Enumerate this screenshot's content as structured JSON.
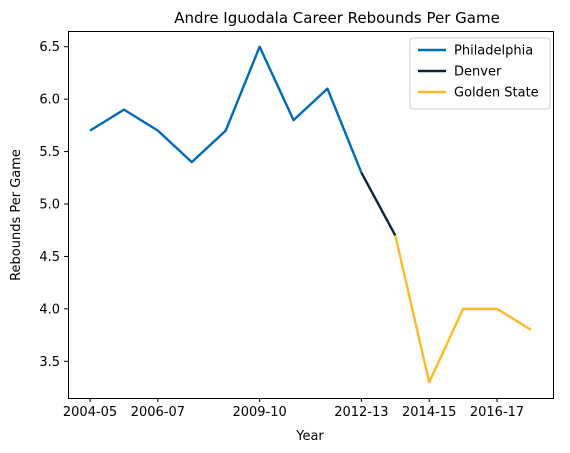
{
  "chart_data": {
    "type": "line",
    "title": "Andre Iguodala Career Rebounds Per Game",
    "xlabel": "Year",
    "ylabel": "Rebounds Per Game",
    "ylim": [
      3.15,
      6.65
    ],
    "yticks": [
      "3.5",
      "4.0",
      "4.5",
      "5.0",
      "5.5",
      "6.0",
      "6.5"
    ],
    "xticks": [
      "2004-05",
      "2006-07",
      "2009-10",
      "2012-13",
      "2014-15",
      "2016-17"
    ],
    "categories": [
      "2004-05",
      "2005-06",
      "2006-07",
      "2007-08",
      "2008-09",
      "2009-10",
      "2010-11",
      "2011-12",
      "2012-13",
      "2013-14",
      "2014-15",
      "2015-16",
      "2016-17",
      "2017-18"
    ],
    "grid": false,
    "legend_position": "top-right",
    "series": [
      {
        "name": "Philadelphia",
        "color": "#006bb6",
        "points": [
          {
            "x": "2004-05",
            "y": 5.7
          },
          {
            "x": "2005-06",
            "y": 5.9
          },
          {
            "x": "2006-07",
            "y": 5.7
          },
          {
            "x": "2007-08",
            "y": 5.4
          },
          {
            "x": "2008-09",
            "y": 5.7
          },
          {
            "x": "2009-10",
            "y": 6.5
          },
          {
            "x": "2010-11",
            "y": 5.8
          },
          {
            "x": "2011-12",
            "y": 6.1
          },
          {
            "x": "2012-13",
            "y": 5.3
          }
        ]
      },
      {
        "name": "Denver",
        "color": "#0e2240",
        "points": [
          {
            "x": "2012-13",
            "y": 5.3
          },
          {
            "x": "2013-14",
            "y": 4.7
          }
        ]
      },
      {
        "name": "Golden State",
        "color": "#fdb927",
        "points": [
          {
            "x": "2013-14",
            "y": 4.7
          },
          {
            "x": "2014-15",
            "y": 3.3
          },
          {
            "x": "2015-16",
            "y": 4.0
          },
          {
            "x": "2016-17",
            "y": 4.0
          },
          {
            "x": "2017-18",
            "y": 3.8
          }
        ]
      }
    ]
  }
}
